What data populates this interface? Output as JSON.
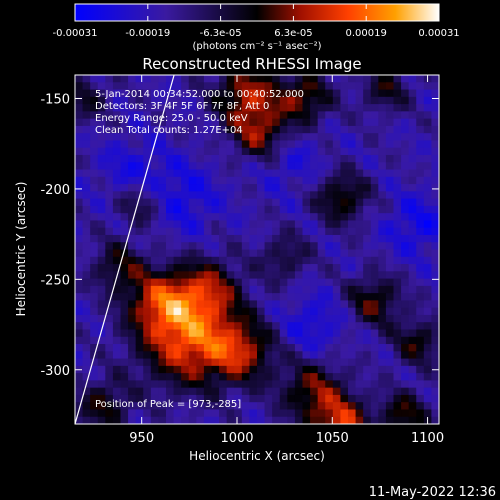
{
  "colorbar": {
    "tick_labels": [
      "-0.00031",
      "-0.00019",
      "-6.3e-05",
      "6.3e-05",
      "0.00019",
      "0.00031"
    ],
    "unit_label": "(photons cm⁻² s⁻¹ asec⁻²)",
    "range": [
      -0.00031,
      0.00031
    ]
  },
  "chart_data": {
    "type": "heatmap",
    "title": "Reconstructed RHESSI Image",
    "xlabel": "Heliocentric X (arcsec)",
    "ylabel": "Heliocentric Y (arcsec)",
    "xlim": [
      915,
      1106
    ],
    "ylim": [
      -330,
      -137
    ],
    "x_ticks": [
      950,
      1000,
      1050,
      1100
    ],
    "y_ticks": [
      -150,
      -200,
      -250,
      -300
    ],
    "annotations": [
      "5-Jan-2014 00:34:52.000 to 00:40:52.000",
      "Detectors: 3F 4F 5F 6F 7F 8F, Att 0",
      "Energy Range: 25.0 - 50.0 keV",
      "Clean     Total counts: 1.27E+04"
    ],
    "peak_label": "Position of Peak = [973,-285]",
    "peak": [
      973,
      -285
    ],
    "limb_line": [
      [
        915,
        -330
      ],
      [
        967,
        -137
      ]
    ],
    "grid": false,
    "intensity_blobs": [
      {
        "x": 975,
        "y": -283,
        "value": 0.00031,
        "sigma": 18
      },
      {
        "x": 960,
        "y": -262,
        "value": 0.00022,
        "sigma": 12
      },
      {
        "x": 985,
        "y": -255,
        "value": 0.00018,
        "sigma": 12
      },
      {
        "x": 1003,
        "y": -290,
        "value": 0.0002,
        "sigma": 12
      },
      {
        "x": 1055,
        "y": -330,
        "value": 0.00026,
        "sigma": 10
      },
      {
        "x": 1040,
        "y": -312,
        "value": 0.0002,
        "sigma": 12
      },
      {
        "x": 1005,
        "y": -148,
        "value": 0.00024,
        "sigma": 12
      },
      {
        "x": 1012,
        "y": -170,
        "value": 0.0002,
        "sigma": 10
      },
      {
        "x": 1035,
        "y": -150,
        "value": 0.0002,
        "sigma": 10
      },
      {
        "x": 1055,
        "y": -205,
        "value": 0.00018,
        "sigma": 10
      },
      {
        "x": 1072,
        "y": -262,
        "value": 0.00018,
        "sigma": 10
      },
      {
        "x": 1095,
        "y": -285,
        "value": 0.00016,
        "sigma": 9
      },
      {
        "x": 1088,
        "y": -325,
        "value": 0.00018,
        "sigma": 9
      },
      {
        "x": 950,
        "y": -208,
        "value": 0.00014,
        "sigma": 9
      },
      {
        "x": 938,
        "y": -243,
        "value": 0.00015,
        "sigma": 10
      },
      {
        "x": 930,
        "y": -320,
        "value": 0.00016,
        "sigma": 10
      },
      {
        "x": 1025,
        "y": -238,
        "value": 0.00012,
        "sigma": 9
      },
      {
        "x": 1078,
        "y": -145,
        "value": 0.00014,
        "sigma": 9
      },
      {
        "x": 920,
        "y": -150,
        "value": 0.00012,
        "sigma": 9
      },
      {
        "x": 945,
        "y": -190,
        "value": -8e-05,
        "sigma": 12
      },
      {
        "x": 970,
        "y": -205,
        "value": -0.0001,
        "sigma": 14
      },
      {
        "x": 1040,
        "y": -275,
        "value": -9e-05,
        "sigma": 12
      },
      {
        "x": 1095,
        "y": -220,
        "value": -0.0001,
        "sigma": 12
      },
      {
        "x": 1028,
        "y": -185,
        "value": -7e-05,
        "sigma": 12
      }
    ]
  },
  "timestamp": "11-May-2022 12:36"
}
